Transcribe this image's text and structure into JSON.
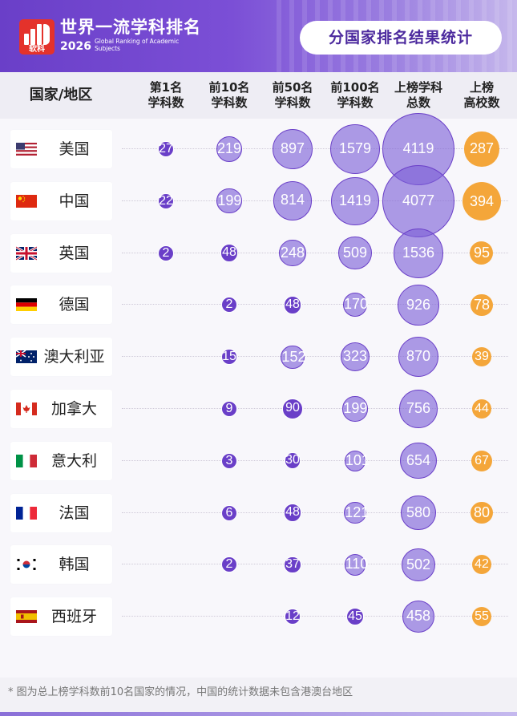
{
  "brand": {
    "logo_text": "软科",
    "title_cn": "世界一流学科排名",
    "year": "2026",
    "title_en": "Global Ranking of Academic Subjects"
  },
  "page_title": "分国家排名结果统计",
  "columns": [
    {
      "key": "country",
      "label_lines": [
        "国家/地区"
      ]
    },
    {
      "key": "top1",
      "label_lines": [
        "第1名",
        "学科数"
      ]
    },
    {
      "key": "top10",
      "label_lines": [
        "前10名",
        "学科数"
      ]
    },
    {
      "key": "top50",
      "label_lines": [
        "前50名",
        "学科数"
      ]
    },
    {
      "key": "top100",
      "label_lines": [
        "前100名",
        "学科数"
      ]
    },
    {
      "key": "total",
      "label_lines": [
        "上榜学科",
        "总数"
      ]
    },
    {
      "key": "universities",
      "label_lines": [
        "上榜",
        "高校数"
      ]
    }
  ],
  "colors": {
    "bubble_purple": "#6a3fc8",
    "bubble_light": "#b3a0ec",
    "bubble_orange": "#f4a63a",
    "header_purple": "#6a3fc8"
  },
  "chart_data": {
    "type": "table",
    "note": "* 图为总上榜学科数前10名国家的情况，中国的统计数据未包含港澳台地区",
    "rows": [
      {
        "flag": "us",
        "country": "美国",
        "top1": 27,
        "top10": 219,
        "top50": 897,
        "top100": 1579,
        "total": 4119,
        "universities": 287
      },
      {
        "flag": "cn",
        "country": "中国",
        "top1": 22,
        "top10": 199,
        "top50": 814,
        "top100": 1419,
        "total": 4077,
        "universities": 394
      },
      {
        "flag": "gb",
        "country": "英国",
        "top1": 2,
        "top10": 48,
        "top50": 248,
        "top100": 509,
        "total": 1536,
        "universities": 95
      },
      {
        "flag": "de",
        "country": "德国",
        "top1": null,
        "top10": 2,
        "top50": 48,
        "top100": 170,
        "total": 926,
        "universities": 78
      },
      {
        "flag": "au",
        "country": "澳大利亚",
        "top1": null,
        "top10": 15,
        "top50": 152,
        "top100": 323,
        "total": 870,
        "universities": 39
      },
      {
        "flag": "ca",
        "country": "加拿大",
        "top1": null,
        "top10": 9,
        "top50": 90,
        "top100": 199,
        "total": 756,
        "universities": 44
      },
      {
        "flag": "it",
        "country": "意大利",
        "top1": null,
        "top10": 3,
        "top50": 30,
        "top100": 101,
        "total": 654,
        "universities": 67
      },
      {
        "flag": "fr",
        "country": "法国",
        "top1": null,
        "top10": 6,
        "top50": 48,
        "top100": 121,
        "total": 580,
        "universities": 80
      },
      {
        "flag": "kr",
        "country": "韩国",
        "top1": null,
        "top10": 2,
        "top50": 37,
        "top100": 110,
        "total": 502,
        "universities": 42
      },
      {
        "flag": "es",
        "country": "西班牙",
        "top1": null,
        "top10": null,
        "top50": 12,
        "top100": 45,
        "total": 458,
        "universities": 55
      }
    ]
  }
}
